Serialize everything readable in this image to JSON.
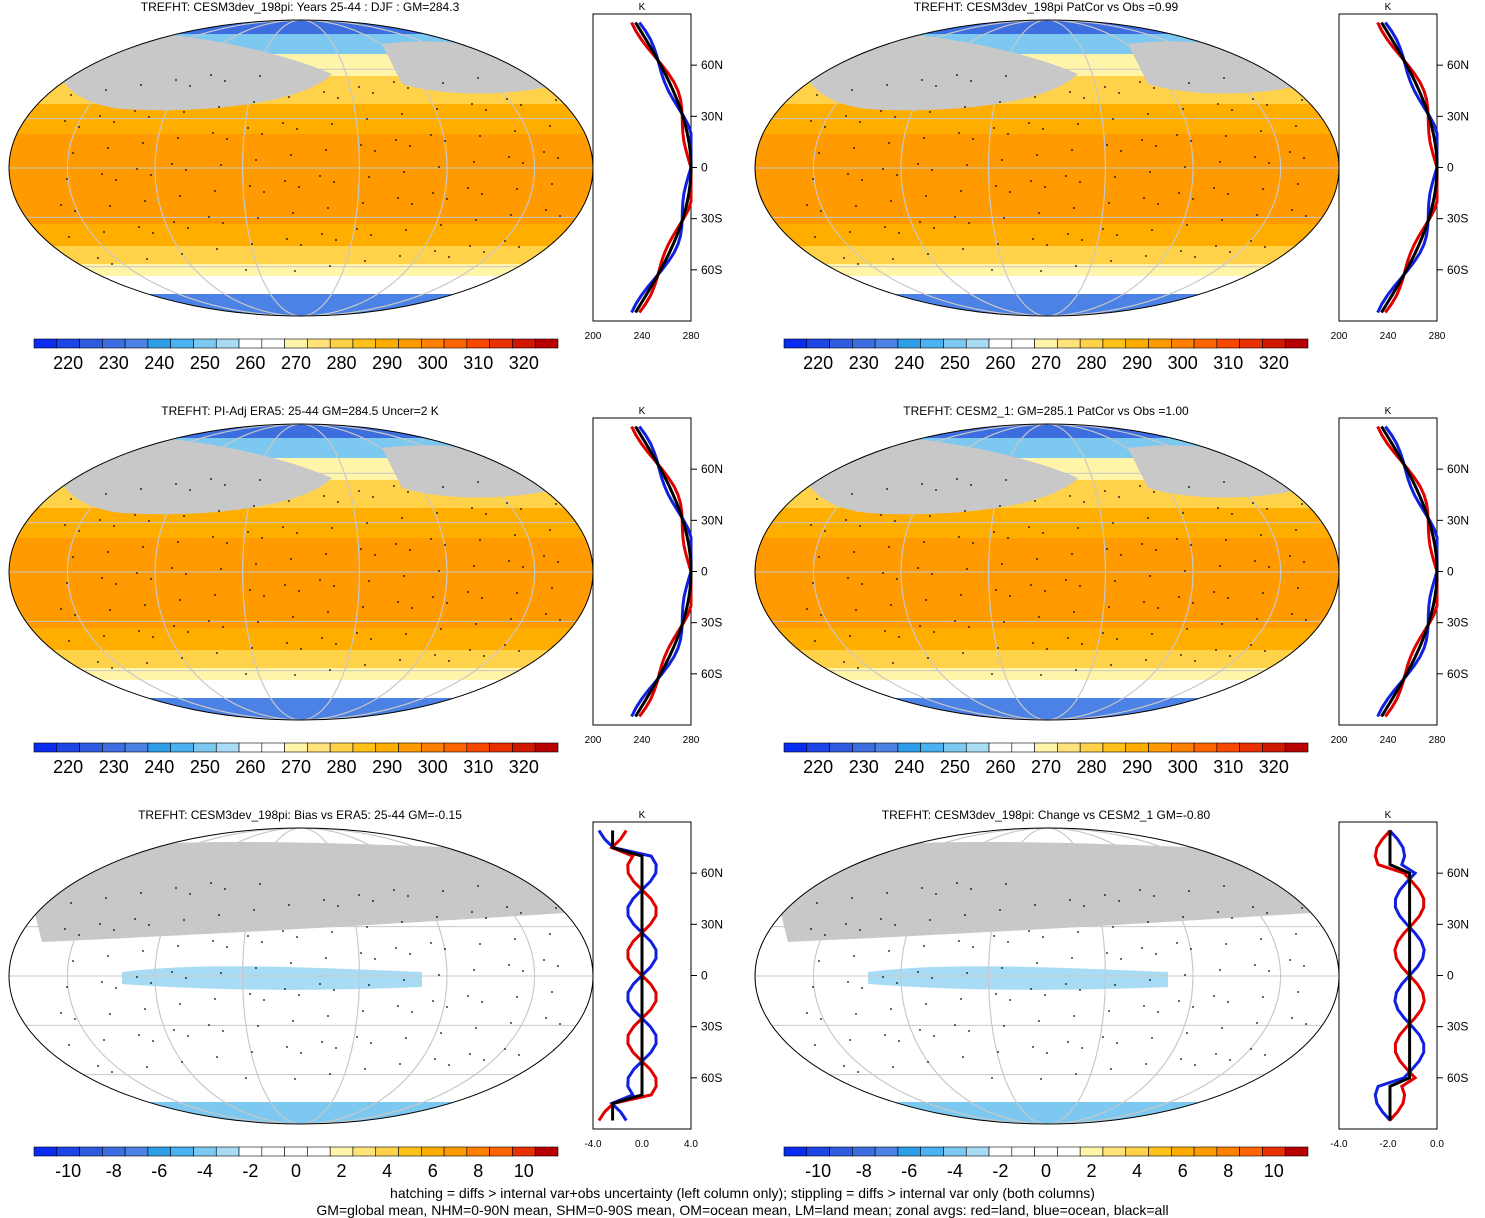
{
  "panels": [
    {
      "title": "TREFHT: CESM3dev_198pi: Years 25-44 : DJF : GM=284.3",
      "scheme": "temp"
    },
    {
      "title": "TREFHT: CESM3dev_198pi PatCor vs Obs =0.99",
      "scheme": "temp"
    },
    {
      "title": "TREFHT: PI-Adj ERA5: 25-44 GM=284.5 Uncer=2 K",
      "scheme": "temp"
    },
    {
      "title": "TREFHT: CESM2_1: GM=285.1 PatCor vs Obs =1.00",
      "scheme": "temp"
    },
    {
      "title": "TREFHT: CESM3dev_198pi: Bias vs ERA5: 25-44 GM=-0.15",
      "scheme": "diff"
    },
    {
      "title": "TREFHT: CESM3dev_198pi: Change vs CESM2_1 GM=-0.80",
      "scheme": "diff"
    }
  ],
  "colorbars": {
    "temp": {
      "labels": [
        "220",
        "230",
        "240",
        "250",
        "260",
        "270",
        "280",
        "290",
        "300",
        "310",
        "320"
      ],
      "colors": [
        "#0a2cf0",
        "#1e46e6",
        "#2e5be0",
        "#3c6ee0",
        "#4c82e6",
        "#2f9ee8",
        "#4ab2f0",
        "#7cc8f0",
        "#a8dcf5",
        "#ffffff",
        "#ffffff",
        "#fff4a8",
        "#ffe27a",
        "#ffd24a",
        "#ffc21a",
        "#ffae00",
        "#ff9a00",
        "#ff8000",
        "#ff6400",
        "#f84800",
        "#e83000",
        "#d01800",
        "#b80000"
      ]
    },
    "diff": {
      "labels": [
        "-10",
        "-8",
        "-6",
        "-4",
        "-2",
        "0",
        "2",
        "4",
        "6",
        "8",
        "10"
      ],
      "colors": [
        "#0a2cf0",
        "#1e46e6",
        "#2e5be0",
        "#3c6ee0",
        "#4c82e6",
        "#2f9ee8",
        "#4ab2f0",
        "#7cc8f0",
        "#a8dcf5",
        "#ffffff",
        "#ffffff",
        "#ffffff",
        "#ffffff",
        "#fff4a8",
        "#ffe27a",
        "#ffd24a",
        "#ffc21a",
        "#ffae00",
        "#ff9a00",
        "#ff8000",
        "#ff6400",
        "#e83000",
        "#b80000"
      ]
    }
  },
  "zonal_axes": {
    "unit": "K",
    "lat_labels": [
      "60N",
      "30N",
      "0",
      "30S",
      "60S"
    ],
    "temp_x_labels": [
      "200",
      "240",
      "280"
    ],
    "bias_x_labels": [
      "-4.0",
      "0.0",
      "4.0"
    ],
    "change_x_labels": [
      "-4.0",
      "-2.0",
      "0.0"
    ]
  },
  "chart_data": {
    "type": "line",
    "description_series": [
      {
        "name": "red=land",
        "color": "#e00000"
      },
      {
        "name": "blue=ocean",
        "color": "#1020e0"
      },
      {
        "name": "black=all",
        "color": "#000000"
      }
    ]
  },
  "footer": {
    "line1": "hatching = diffs > internal var+obs uncertainty (left column only); stippling = diffs > internal var only (both columns)",
    "line2": "GM=global mean, NHM=0-90N mean, SHM=0-90S mean, OM=ocean mean, LM=land mean; zonal avgs: red=land, blue=ocean, black=all"
  }
}
